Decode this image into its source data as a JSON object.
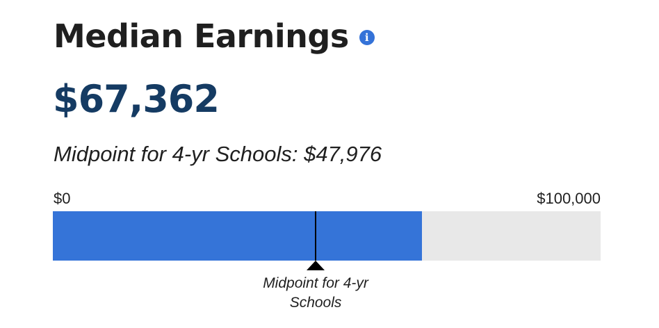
{
  "header": {
    "title": "Median Earnings",
    "info_icon": "info-icon",
    "info_glyph": "i"
  },
  "value_display": "$67,362",
  "midpoint_text": "Midpoint for 4-yr Schools: $47,976",
  "chart_data": {
    "type": "bar",
    "orientation": "horizontal",
    "value": 67362,
    "xlim": [
      0,
      100000
    ],
    "axis_labels": {
      "min": "$0",
      "max": "$100,000"
    },
    "reference": {
      "value": 47976,
      "label": "Midpoint for 4-yr Schools"
    },
    "grid": false
  },
  "colors": {
    "fill": "#3574d8",
    "track": "#e8e8e8",
    "value_text": "#153b63",
    "icon": "#3472d8",
    "marker": "#000000"
  }
}
